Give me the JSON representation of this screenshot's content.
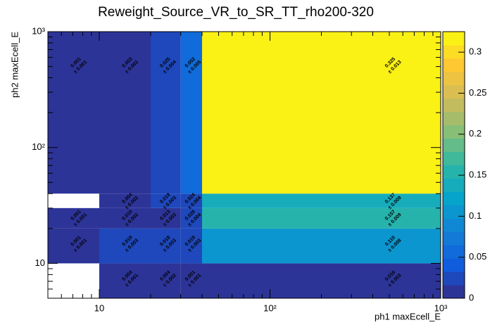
{
  "chart_data": {
    "type": "heatmap2d",
    "title": "Reweight_Source_VR_to_SR_TT_rho200-320",
    "x_label": "ph1 maxEcell_E",
    "y_label": "ph2 maxEcell_E",
    "x_log": true,
    "y_log": true,
    "x_bins": [
      5,
      10,
      20,
      30,
      40,
      1000
    ],
    "y_bins": [
      5,
      10,
      20,
      30,
      40,
      1000
    ],
    "xlim": [
      5,
      1000
    ],
    "ylim": [
      5,
      1000
    ],
    "zlim": [
      0,
      0.325
    ],
    "xticks": [
      10,
      {
        "value": 100,
        "label": "10²"
      },
      {
        "value": 1000,
        "label": "10³"
      }
    ],
    "yticks": [
      10,
      {
        "value": 100,
        "label": "10²"
      },
      {
        "value": 1000,
        "label": "10³"
      }
    ],
    "zticks": [
      0,
      0.05,
      0.1,
      0.15,
      0.2,
      0.25,
      0.3
    ],
    "palette": [
      "#352a87",
      "#0f5cdd",
      "#1481d6",
      "#06a4ca",
      "#2eb7a4",
      "#87bf77",
      "#d1bb59",
      "#fec832",
      "#f9fb0e"
    ],
    "levels": 20,
    "z": [
      [
        null,
        0.004,
        0.004,
        0.001,
        0.016
      ],
      [
        0.001,
        0.019,
        0.018,
        0.019,
        0.11
      ],
      [
        0.001,
        0.01,
        0.013,
        0.028,
        0.157
      ],
      [
        null,
        0.004,
        0.019,
        0.024,
        0.137
      ],
      [
        0.001,
        0.003,
        0.025,
        0.052,
        0.325
      ]
    ],
    "z_labels": [
      [
        null,
        "0.004",
        "0.004",
        "0.001",
        "0.016"
      ],
      [
        "0.001",
        "0.019",
        "0.018",
        "0.019",
        "0.110"
      ],
      [
        "0.001",
        "0.010",
        "0.013",
        "0.028",
        "0.157"
      ],
      [
        null,
        "0.004",
        "0.019",
        "0.024",
        "0.137"
      ],
      [
        "0.001",
        "0.003",
        "0.025",
        "0.052",
        "0.325"
      ]
    ],
    "errors": [
      [
        null,
        0.001,
        0.002,
        0.001,
        0.003
      ],
      [
        0.001,
        0.003,
        0.003,
        0.003,
        0.008
      ],
      [
        0.001,
        0.002,
        0.003,
        0.004,
        0.009
      ],
      [
        null,
        0.002,
        0.003,
        0.004,
        0.009
      ],
      [
        0.001,
        0.002,
        0.004,
        0.005,
        0.013
      ]
    ],
    "error_labels": [
      [
        null,
        "± 0.001",
        "± 0.002",
        "± 0.001",
        "± 0.003"
      ],
      [
        "± 0.001",
        "± 0.003",
        "± 0.003",
        "± 0.003",
        "± 0.008"
      ],
      [
        "± 0.001",
        "± 0.002",
        "± 0.003",
        "± 0.004",
        "± 0.009"
      ],
      [
        null,
        "± 0.002",
        "± 0.003",
        "± 0.004",
        "± 0.009"
      ],
      [
        "± 0.001",
        "± 0.002",
        "± 0.004",
        "± 0.005",
        "± 0.013"
      ]
    ]
  }
}
